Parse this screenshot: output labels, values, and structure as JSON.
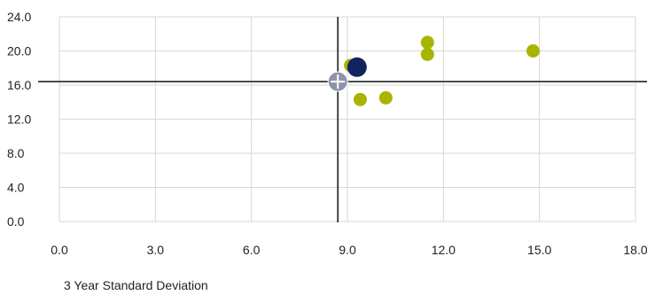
{
  "chart_data": {
    "type": "scatter",
    "title": "",
    "xlabel": "3 Year Standard Deviation",
    "ylabel": "",
    "xlim": [
      0,
      18
    ],
    "ylim": [
      0,
      24
    ],
    "x_ticks": [
      0,
      3,
      6,
      9,
      12,
      15,
      18
    ],
    "y_ticks": [
      0,
      4,
      8,
      12,
      16,
      20,
      24
    ],
    "tick_format": "0.0",
    "grid": true,
    "reference_lines": {
      "x": 8.7,
      "y": 16.4
    },
    "series": [
      {
        "role": "peers",
        "color": "#a8b400",
        "points": [
          {
            "x": 9.1,
            "y": 18.3
          },
          {
            "x": 9.4,
            "y": 14.3
          },
          {
            "x": 10.2,
            "y": 14.5
          },
          {
            "x": 11.5,
            "y": 21.0
          },
          {
            "x": 11.5,
            "y": 19.6
          },
          {
            "x": 14.8,
            "y": 20.0
          }
        ]
      },
      {
        "role": "fund",
        "color": "#13235e",
        "points": [
          {
            "x": 9.3,
            "y": 18.1
          }
        ]
      },
      {
        "role": "benchmark",
        "color": "#8d93ab",
        "marker": "crosshair-circle",
        "points": [
          {
            "x": 8.7,
            "y": 16.4
          }
        ]
      }
    ]
  }
}
